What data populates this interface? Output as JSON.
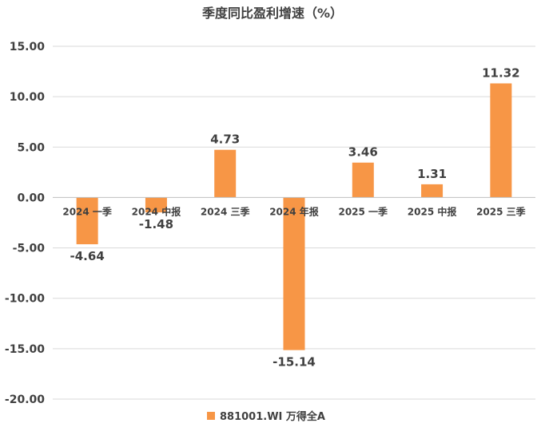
{
  "chart_data": {
    "type": "bar",
    "title": "季度同比盈利增速（%）",
    "categories": [
      "2024 一季",
      "2024 中报",
      "2024 三季",
      "2024 年报",
      "2025 一季",
      "2025 中报",
      "2025 三季"
    ],
    "series": [
      {
        "name": "881001.WI 万得全A",
        "values": [
          -4.64,
          -1.48,
          4.73,
          -15.14,
          3.46,
          1.31,
          11.32
        ],
        "color": "#f79646"
      }
    ],
    "data_labels": [
      "-4.64",
      "-1.48",
      "4.73",
      "-15.14",
      "3.46",
      "1.31",
      "11.32"
    ],
    "ylim": [
      -20,
      15
    ],
    "yticks": [
      15,
      10,
      5,
      0,
      -5,
      -10,
      -15,
      -20
    ],
    "ytick_labels": [
      "15.00",
      "10.00",
      "5.00",
      "0.00",
      "-5.00",
      "-10.00",
      "-15.00",
      "-20.00"
    ],
    "grid": true,
    "legend_position": "bottom"
  }
}
